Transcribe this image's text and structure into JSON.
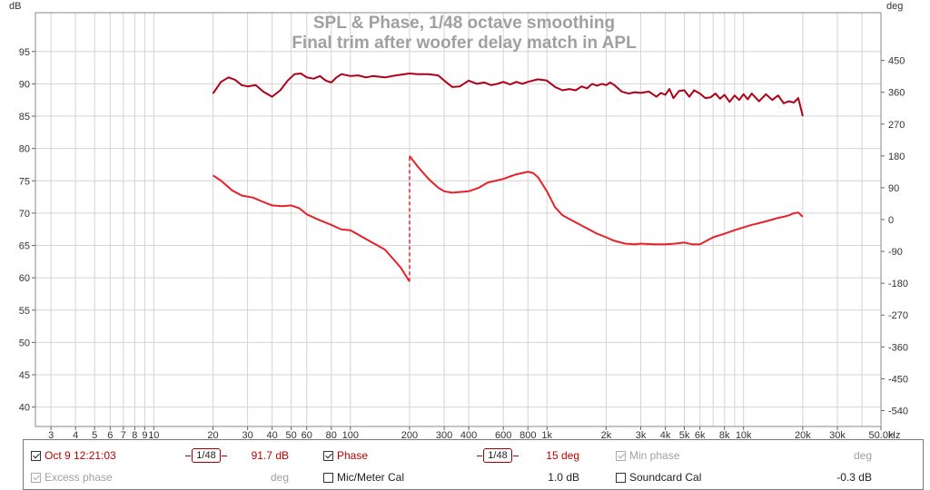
{
  "chart_data": {
    "type": "line",
    "title": "SPL & Phase, 1/48 octave smoothing",
    "subtitle": "Final trim after woofer delay match in APL",
    "xlabel": "Hz",
    "ylabel_left": "dB",
    "ylabel_right": "deg",
    "x_scale": "log",
    "xlim": [
      2.5,
      50000
    ],
    "ylim_left": [
      37,
      101
    ],
    "ylim_right": [
      -585,
      585
    ],
    "x_ticks": [
      {
        "v": 3,
        "label": "3"
      },
      {
        "v": 4,
        "label": "4"
      },
      {
        "v": 5,
        "label": "5"
      },
      {
        "v": 6,
        "label": "6"
      },
      {
        "v": 7,
        "label": "7"
      },
      {
        "v": 8,
        "label": "8"
      },
      {
        "v": 9,
        "label": "9"
      },
      {
        "v": 10,
        "label": "10"
      },
      {
        "v": 20,
        "label": "20"
      },
      {
        "v": 30,
        "label": "30"
      },
      {
        "v": 40,
        "label": "40"
      },
      {
        "v": 50,
        "label": "50"
      },
      {
        "v": 60,
        "label": "60"
      },
      {
        "v": 80,
        "label": "80"
      },
      {
        "v": 100,
        "label": "100"
      },
      {
        "v": 200,
        "label": "200"
      },
      {
        "v": 300,
        "label": "300"
      },
      {
        "v": 400,
        "label": "400"
      },
      {
        "v": 600,
        "label": "600"
      },
      {
        "v": 800,
        "label": "800"
      },
      {
        "v": 1000,
        "label": "1k"
      },
      {
        "v": 2000,
        "label": "2k"
      },
      {
        "v": 3000,
        "label": "3k"
      },
      {
        "v": 4000,
        "label": "4k"
      },
      {
        "v": 5000,
        "label": "5k"
      },
      {
        "v": 6000,
        "label": "6k"
      },
      {
        "v": 8000,
        "label": "8k"
      },
      {
        "v": 10000,
        "label": "10k"
      },
      {
        "v": 20000,
        "label": "20k"
      },
      {
        "v": 30000,
        "label": "30k"
      },
      {
        "v": 50000,
        "label": "50.0k"
      }
    ],
    "x_minor": [
      7000,
      9000,
      40000
    ],
    "y_ticks_left": [
      40,
      45,
      50,
      55,
      60,
      65,
      70,
      75,
      80,
      85,
      90,
      95
    ],
    "y_ticks_right": [
      -540,
      -450,
      -360,
      -270,
      -180,
      -90,
      0,
      90,
      180,
      270,
      360,
      450
    ],
    "grid": true,
    "series": [
      {
        "name": "Oct 9 12:21:03",
        "axis": "left",
        "color": "#b00018",
        "x": [
          20,
          22,
          24,
          26,
          28,
          30,
          33,
          36,
          40,
          44,
          48,
          52,
          56,
          60,
          65,
          70,
          75,
          80,
          85,
          90,
          100,
          110,
          120,
          130,
          150,
          170,
          200,
          220,
          250,
          280,
          300,
          330,
          360,
          400,
          440,
          480,
          520,
          560,
          600,
          650,
          700,
          750,
          800,
          900,
          1000,
          1100,
          1200,
          1300,
          1400,
          1500,
          1600,
          1700,
          1800,
          1900,
          2000,
          2100,
          2200,
          2400,
          2600,
          2800,
          3000,
          3300,
          3600,
          3800,
          4000,
          4200,
          4400,
          4700,
          5000,
          5300,
          5600,
          6000,
          6400,
          6800,
          7200,
          7600,
          8000,
          8500,
          9000,
          9500,
          10000,
          10500,
          11000,
          12000,
          13000,
          14000,
          15000,
          16000,
          17000,
          18000,
          19000,
          20000
        ],
        "y": [
          88.5,
          90.3,
          91.0,
          90.6,
          89.8,
          89.6,
          89.8,
          88.8,
          88.0,
          89.0,
          90.5,
          91.5,
          91.6,
          91.0,
          90.8,
          91.2,
          90.5,
          90.2,
          91.0,
          91.5,
          91.2,
          91.3,
          91.0,
          91.2,
          91.0,
          91.3,
          91.6,
          91.5,
          91.5,
          91.3,
          90.5,
          89.5,
          89.6,
          90.5,
          90.0,
          90.2,
          89.8,
          90.0,
          90.3,
          89.9,
          90.3,
          90.0,
          90.3,
          90.7,
          90.5,
          89.5,
          89.0,
          89.2,
          89.0,
          89.6,
          89.3,
          90.0,
          89.7,
          90.0,
          89.8,
          90.2,
          89.8,
          88.8,
          88.5,
          88.7,
          88.6,
          88.8,
          88.0,
          88.6,
          88.3,
          89.2,
          87.8,
          88.9,
          89.0,
          88.0,
          89.0,
          88.5,
          87.8,
          87.9,
          88.5,
          87.7,
          88.3,
          87.2,
          88.2,
          87.5,
          88.4,
          87.6,
          88.5,
          87.3,
          88.4,
          87.5,
          88.2,
          87.0,
          87.3,
          87.1,
          87.8,
          85.0
        ]
      },
      {
        "name": "Phase",
        "axis": "right",
        "color": "#e8202a",
        "x": [
          20,
          22,
          25,
          28,
          32,
          36,
          40,
          45,
          50,
          55,
          60,
          70,
          80,
          90,
          100,
          120,
          150,
          180,
          200,
          200,
          220,
          250,
          280,
          300,
          330,
          360,
          400,
          450,
          500,
          550,
          600,
          650,
          700,
          750,
          800,
          850,
          900,
          1000,
          1100,
          1200,
          1400,
          1600,
          1800,
          2000,
          2200,
          2500,
          2800,
          3000,
          3500,
          4000,
          4500,
          5000,
          5500,
          6000,
          7000,
          8000,
          9000,
          10000,
          11000,
          12000,
          13000,
          14000,
          15000,
          16000,
          17000,
          18000,
          19000,
          20000
        ],
        "y": [
          125,
          110,
          83,
          68,
          62,
          50,
          40,
          38,
          40,
          32,
          15,
          -2,
          -15,
          -28,
          -30,
          -55,
          -85,
          -135,
          -175,
          180,
          150,
          115,
          90,
          80,
          76,
          78,
          80,
          90,
          105,
          110,
          115,
          122,
          128,
          132,
          135,
          132,
          120,
          80,
          35,
          12,
          -8,
          -25,
          -40,
          -50,
          -60,
          -68,
          -70,
          -68,
          -70,
          -70,
          -68,
          -65,
          -70,
          -70,
          -50,
          -40,
          -30,
          -22,
          -15,
          -10,
          -5,
          0,
          5,
          8,
          12,
          18,
          20,
          8
        ]
      }
    ]
  },
  "legend": {
    "row1": {
      "trace_name": "Oct 9 12:21:03",
      "smoothing1": "1/48",
      "spl_value": "91.7 dB",
      "phase_label": "Phase",
      "smoothing2": "1/48",
      "phase_value": "15 deg",
      "min_phase_label": "Min phase",
      "min_phase_unit": "deg"
    },
    "row2": {
      "excess_phase_label": "Excess phase",
      "excess_phase_unit": "deg",
      "mic_cal_label": "Mic/Meter Cal",
      "mic_cal_value": "1.0 dB",
      "soundcard_cal_label": "Soundcard Cal",
      "soundcard_cal_value": "-0.3 dB"
    }
  },
  "colors": {
    "grid": "#d4d4d4",
    "axis": "#555555",
    "title": "#a0a0a0",
    "spl_trace": "#b00018",
    "phase_trace": "#e8202a"
  }
}
